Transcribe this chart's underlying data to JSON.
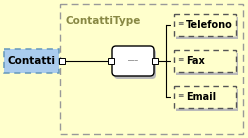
{
  "bg_color": "#ffffcc",
  "outer_box_color": "#999999",
  "title": "ContattiType",
  "title_color": "#888844",
  "title_fontsize": 7.5,
  "contatti_label": "Contatti",
  "contatti_box_facecolor": "#aaccee",
  "contatti_box_edgecolor": "#6699bb",
  "items": [
    "Telefono",
    "Fax",
    "Email"
  ],
  "item_box_facecolor": "#ffffcc",
  "item_box_edgecolor": "#555555",
  "item_fontsize": 7.0,
  "label_fontsize": 7.5,
  "shadow_color": "#bbbbbb",
  "line_color": "#000000"
}
